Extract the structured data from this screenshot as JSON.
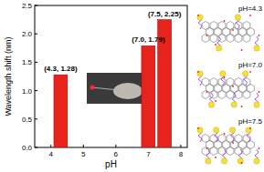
{
  "chart_data": {
    "type": "bar",
    "x_label": "pH",
    "y_label": "Wavelength shift (nm)",
    "x": [
      4.3,
      7.0,
      7.5
    ],
    "values": [
      1.28,
      1.79,
      2.25
    ],
    "value_labels": [
      "(4.3, 1.28)",
      "(7.0, 1.79)",
      "(7.5, 2.25)"
    ],
    "data_labels": true,
    "color": "#e8231b",
    "xlim": [
      3.5,
      8.2
    ],
    "xticks": [
      4,
      5,
      6,
      7,
      8
    ],
    "ylim": [
      0,
      2.5
    ],
    "yticks": [
      {
        "value": 0,
        "label": "0.0"
      },
      0.5,
      {
        "value": 1,
        "label": "1.0"
      },
      1.5,
      {
        "value": 2,
        "label": "2.0"
      },
      2.5
    ],
    "annotations": [
      "pH=4.3",
      "pH=7.0",
      "pH=7.5"
    ]
  }
}
